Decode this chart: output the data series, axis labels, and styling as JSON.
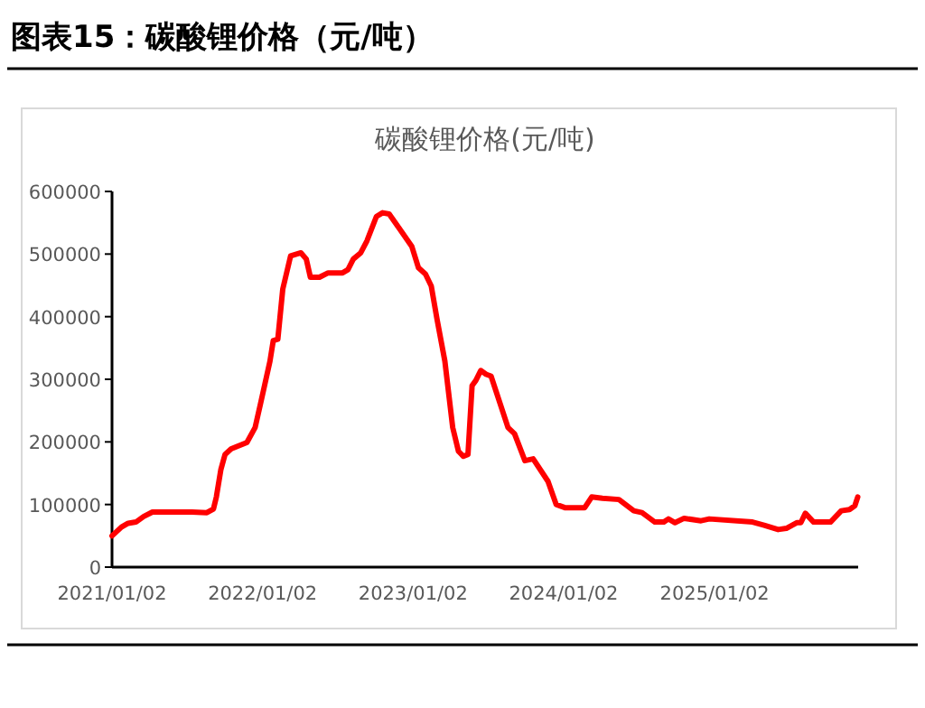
{
  "chart_data": {
    "type": "line",
    "title": "图表15：碳酸锂价格（元/吨）",
    "subtitle": "碳酸锂价格(元/吨)",
    "x": [
      "2021-01-02",
      "2021-01-25",
      "2021-02-10",
      "2021-03-01",
      "2021-03-20",
      "2021-04-10",
      "2021-05-15",
      "2021-07-15",
      "2021-08-20",
      "2021-09-05",
      "2021-09-12",
      "2021-09-23",
      "2021-10-03",
      "2021-10-18",
      "2021-11-25",
      "2021-12-15",
      "2021-12-28",
      "2022-01-20",
      "2022-01-28",
      "2022-02-08",
      "2022-02-20",
      "2022-03-11",
      "2022-04-05",
      "2022-04-18",
      "2022-04-28",
      "2022-05-20",
      "2022-06-10",
      "2022-07-15",
      "2022-07-28",
      "2022-08-10",
      "2022-08-28",
      "2022-09-12",
      "2022-10-05",
      "2022-10-20",
      "2022-11-05",
      "2022-11-20",
      "2022-12-30",
      "2023-01-15",
      "2023-02-01",
      "2023-02-15",
      "2023-03-01",
      "2023-03-20",
      "2023-04-08",
      "2023-04-22",
      "2023-05-04",
      "2023-05-15",
      "2023-05-25",
      "2023-06-03",
      "2023-06-15",
      "2023-06-28",
      "2023-07-10",
      "2023-08-20",
      "2023-09-05",
      "2023-09-30",
      "2023-10-20",
      "2023-11-25",
      "2023-12-15",
      "2024-01-05",
      "2024-02-22",
      "2024-03-10",
      "2024-04-05",
      "2024-05-15",
      "2024-06-20",
      "2024-07-10",
      "2024-08-10",
      "2024-09-01",
      "2024-09-12",
      "2024-09-28",
      "2024-10-20",
      "2024-11-30",
      "2024-12-20",
      "2025-04-04",
      "2025-05-02",
      "2025-06-05",
      "2025-06-25",
      "2025-07-20",
      "2025-07-30",
      "2025-08-10",
      "2025-08-30",
      "2025-10-10",
      "2025-11-05",
      "2025-11-25",
      "2025-12-08",
      "2025-12-15"
    ],
    "series": [
      {
        "color": "#ff0000",
        "values": [
          50000,
          64000,
          70000,
          72000,
          81000,
          88000,
          88000,
          88000,
          87000,
          93000,
          112000,
          156000,
          180000,
          189000,
          199000,
          223000,
          261000,
          329000,
          362000,
          364000,
          444000,
          497000,
          502000,
          492000,
          463000,
          463000,
          470000,
          470000,
          475000,
          492000,
          502000,
          521000,
          560000,
          566000,
          564000,
          550000,
          512000,
          478000,
          468000,
          449000,
          396000,
          329000,
          223000,
          185000,
          177000,
          180000,
          290000,
          298000,
          314000,
          308000,
          305000,
          223000,
          213000,
          170000,
          173000,
          137000,
          100000,
          95000,
          95000,
          112000,
          110000,
          108000,
          90000,
          87000,
          72000,
          72000,
          77000,
          71000,
          78000,
          74000,
          77000,
          72000,
          67000,
          60000,
          62000,
          71000,
          71000,
          86000,
          72000,
          72000,
          90000,
          92000,
          98000,
          112000
        ]
      }
    ],
    "xlim": [
      "2021-01-02",
      "2025-12-16"
    ],
    "xticks": [
      {
        "value": "2021-01-02",
        "label": "2021/01/02"
      },
      {
        "value": "2022-01-02",
        "label": "2022/01/02"
      },
      {
        "value": "2023-01-02",
        "label": "2023/01/02"
      },
      {
        "value": "2024-01-02",
        "label": "2024/01/02"
      },
      {
        "value": "2025-01-02",
        "label": "2025/01/02"
      }
    ],
    "ylim": [
      0,
      600000
    ],
    "yticks": [
      0,
      100000,
      200000,
      300000,
      400000,
      500000,
      600000
    ],
    "grid": false,
    "marker": "none",
    "line_style": "solid"
  }
}
